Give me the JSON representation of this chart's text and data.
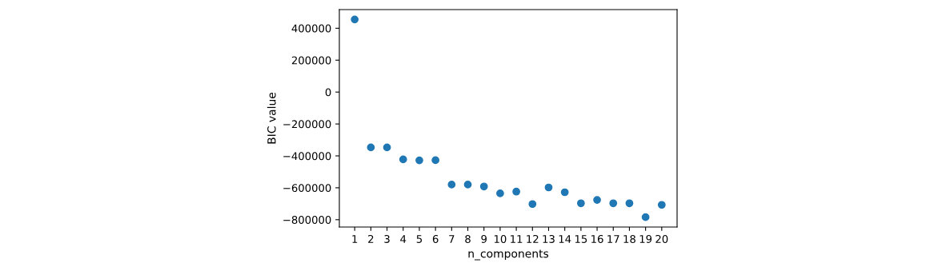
{
  "chart_data": {
    "type": "scatter",
    "xlabel": "n_components",
    "ylabel": "BIC value",
    "x": [
      1,
      2,
      3,
      4,
      5,
      6,
      7,
      8,
      9,
      10,
      11,
      12,
      13,
      14,
      15,
      16,
      17,
      18,
      19,
      20
    ],
    "series": [
      {
        "color": "#1f77b4",
        "values": [
          455000,
          -347000,
          -347000,
          -422000,
          -428000,
          -427000,
          -580000,
          -580000,
          -592000,
          -635000,
          -624000,
          -702000,
          -598000,
          -628000,
          -697000,
          -676000,
          -697000,
          -697000,
          -784000,
          -707000
        ]
      }
    ],
    "xlim": [
      0.05,
      20.95
    ],
    "xticks": [
      1,
      2,
      3,
      4,
      5,
      6,
      7,
      8,
      9,
      10,
      11,
      12,
      13,
      14,
      15,
      16,
      17,
      18,
      19,
      20
    ],
    "ylim": [
      -846000,
      517000
    ],
    "yticks": [
      {
        "value": -800000,
        "label": "−800000"
      },
      {
        "value": -600000,
        "label": "−600000"
      },
      {
        "value": -400000,
        "label": "−400000"
      },
      {
        "value": -200000,
        "label": "−200000"
      },
      0,
      200000,
      400000
    ],
    "grid": false,
    "legend": false,
    "marker": "circle"
  }
}
